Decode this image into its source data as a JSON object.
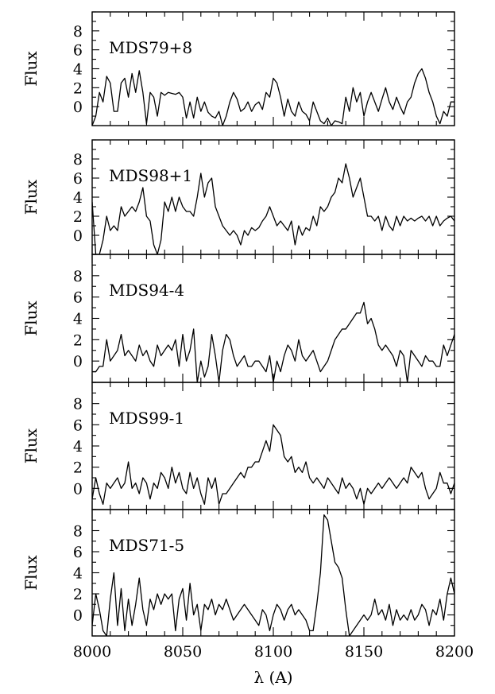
{
  "chart_data": {
    "type": "line",
    "xlabel": "λ (A)",
    "xlim": [
      8000,
      8200
    ],
    "x_ticks": [
      8000,
      8050,
      8100,
      8150,
      8200
    ],
    "x_tick_labels": [
      "8000",
      "8050",
      "8100",
      "8150",
      "8200"
    ],
    "ylim": [
      -2,
      10
    ],
    "y_ticks": [
      0,
      2,
      4,
      6,
      8
    ],
    "y_tick_labels": [
      "0",
      "2",
      "4",
      "6",
      "8"
    ],
    "ylabel": "Flux",
    "panels": [
      {
        "name": "MDS79+8",
        "x": [
          8000,
          8002,
          8004,
          8006,
          8008,
          8010,
          8012,
          8014,
          8016,
          8018,
          8020,
          8022,
          8024,
          8026,
          8028,
          8030,
          8032,
          8034,
          8036,
          8038,
          8040,
          8042,
          8044,
          8046,
          8048,
          8050,
          8052,
          8054,
          8056,
          8058,
          8060,
          8062,
          8064,
          8066,
          8068,
          8070,
          8072,
          8074,
          8076,
          8078,
          8080,
          8082,
          8084,
          8086,
          8088,
          8090,
          8092,
          8094,
          8096,
          8098,
          8100,
          8102,
          8104,
          8106,
          8108,
          8110,
          8112,
          8114,
          8116,
          8118,
          8120,
          8122,
          8124,
          8126,
          8128,
          8130,
          8132,
          8134,
          8136,
          8138,
          8140,
          8142,
          8144,
          8146,
          8148,
          8150,
          8152,
          8154,
          8156,
          8158,
          8160,
          8162,
          8164,
          8166,
          8168,
          8170,
          8172,
          8174,
          8176,
          8178,
          8180,
          8182,
          8184,
          8186,
          8188,
          8190,
          8192,
          8194,
          8196,
          8198,
          8200
        ],
        "values": [
          -2,
          -1,
          1.5,
          0.5,
          3.2,
          2.5,
          -0.5,
          -0.5,
          2.5,
          3.0,
          1.0,
          3.5,
          1.5,
          3.8,
          1.5,
          -1.8,
          1.5,
          1.0,
          -1.0,
          1.5,
          1.2,
          1.5,
          1.4,
          1.3,
          1.5,
          1.0,
          -1.2,
          0.5,
          -1.2,
          1.0,
          -0.5,
          0.5,
          -0.6,
          -1.0,
          -1.2,
          -0.5,
          -2.0,
          -1.0,
          0.5,
          1.5,
          0.8,
          -0.5,
          -0.2,
          0.5,
          -0.5,
          0.2,
          0.5,
          -0.3,
          1.5,
          1.0,
          3.0,
          2.5,
          1.0,
          -1.0,
          0.8,
          -0.5,
          -1.0,
          0.5,
          -0.5,
          -0.8,
          -1.5,
          0.5,
          -0.5,
          -1.5,
          -1.8,
          -1.2,
          -2.0,
          -1.5,
          -1.6,
          -1.8,
          1.0,
          -0.5,
          2.0,
          0.5,
          1.5,
          -1.0,
          0.5,
          1.5,
          0.5,
          -0.5,
          0.8,
          2.0,
          0.5,
          -0.3,
          1.0,
          0.0,
          -0.8,
          0.5,
          1.0,
          2.5,
          3.5,
          4.0,
          3.0,
          1.5,
          0.5,
          -1.0,
          -1.8,
          -0.5,
          -1.0,
          0.5,
          0.5
        ]
      },
      {
        "name": "MDS98+1",
        "x": [
          8000,
          8002,
          8004,
          8006,
          8008,
          8010,
          8012,
          8014,
          8016,
          8018,
          8020,
          8022,
          8024,
          8026,
          8028,
          8030,
          8032,
          8034,
          8036,
          8038,
          8040,
          8042,
          8044,
          8046,
          8048,
          8050,
          8052,
          8054,
          8056,
          8058,
          8060,
          8062,
          8064,
          8066,
          8068,
          8070,
          8072,
          8074,
          8076,
          8078,
          8080,
          8082,
          8084,
          8086,
          8088,
          8090,
          8092,
          8094,
          8096,
          8098,
          8100,
          8102,
          8104,
          8106,
          8108,
          8110,
          8112,
          8114,
          8116,
          8118,
          8120,
          8122,
          8124,
          8126,
          8128,
          8130,
          8132,
          8134,
          8136,
          8138,
          8140,
          8142,
          8144,
          8146,
          8148,
          8150,
          8152,
          8154,
          8156,
          8158,
          8160,
          8162,
          8164,
          8166,
          8168,
          8170,
          8172,
          8174,
          8176,
          8178,
          8180,
          8182,
          8184,
          8186,
          8188,
          8190,
          8192,
          8194,
          8196,
          8198,
          8200
        ],
        "values": [
          3.5,
          -2.0,
          -2.0,
          -0.5,
          2.0,
          0.5,
          1.0,
          0.5,
          3.0,
          2.0,
          2.5,
          3.0,
          2.5,
          3.5,
          5.0,
          2.0,
          1.5,
          -1.0,
          -2.0,
          -0.5,
          3.5,
          2.5,
          4.0,
          2.5,
          4.0,
          3.0,
          2.5,
          2.5,
          2.0,
          4.0,
          6.5,
          4.0,
          5.5,
          6.0,
          3.0,
          2.0,
          1.0,
          0.5,
          0.0,
          0.5,
          0.0,
          -1.0,
          0.5,
          0.0,
          0.8,
          0.5,
          0.8,
          1.5,
          2.0,
          3.0,
          2.0,
          1.0,
          1.5,
          1.0,
          0.5,
          1.5,
          -1.0,
          1.0,
          0.0,
          0.8,
          0.5,
          2.0,
          1.0,
          3.0,
          2.5,
          3.0,
          4.0,
          4.5,
          6.0,
          5.5,
          7.5,
          6.0,
          4.0,
          5.0,
          6.0,
          4.0,
          2.0,
          2.0,
          1.5,
          2.0,
          0.5,
          2.0,
          1.0,
          0.5,
          2.0,
          1.0,
          2.0,
          1.5,
          1.8,
          1.5,
          1.8,
          2.0,
          1.5,
          2.0,
          1.0,
          2.0,
          1.0,
          1.5,
          1.8,
          2.0,
          1.5
        ]
      },
      {
        "name": "MDS94-4",
        "x": [
          8000,
          8002,
          8004,
          8006,
          8008,
          8010,
          8012,
          8014,
          8016,
          8018,
          8020,
          8022,
          8024,
          8026,
          8028,
          8030,
          8032,
          8034,
          8036,
          8038,
          8040,
          8042,
          8044,
          8046,
          8048,
          8050,
          8052,
          8054,
          8056,
          8058,
          8060,
          8062,
          8064,
          8066,
          8068,
          8070,
          8072,
          8074,
          8076,
          8078,
          8080,
          8082,
          8084,
          8086,
          8088,
          8090,
          8092,
          8094,
          8096,
          8098,
          8100,
          8102,
          8104,
          8106,
          8108,
          8110,
          8112,
          8114,
          8116,
          8118,
          8120,
          8122,
          8124,
          8126,
          8128,
          8130,
          8132,
          8134,
          8136,
          8138,
          8140,
          8142,
          8144,
          8146,
          8148,
          8150,
          8152,
          8154,
          8156,
          8158,
          8160,
          8162,
          8164,
          8166,
          8168,
          8170,
          8172,
          8174,
          8176,
          8178,
          8180,
          8182,
          8184,
          8186,
          8188,
          8190,
          8192,
          8194,
          8196,
          8198,
          8200
        ],
        "values": [
          -1.0,
          -1.0,
          -0.5,
          -0.5,
          2.0,
          0.0,
          0.5,
          1.0,
          2.5,
          0.5,
          1.0,
          0.5,
          0.0,
          1.5,
          0.5,
          1.0,
          0.0,
          -0.5,
          1.5,
          0.5,
          1.0,
          1.5,
          1.0,
          2.0,
          -0.5,
          2.5,
          0.0,
          1.0,
          3.0,
          -2.0,
          0.0,
          -1.5,
          -0.5,
          2.5,
          0.5,
          -2.0,
          1.0,
          2.5,
          2.0,
          0.5,
          -0.5,
          0.0,
          0.5,
          -0.5,
          -0.5,
          0.0,
          0.0,
          -0.5,
          -1.0,
          0.5,
          -2.0,
          0.0,
          -1.0,
          0.5,
          1.5,
          1.0,
          0.0,
          2.0,
          0.5,
          0.0,
          0.5,
          1.0,
          0.0,
          -1.0,
          -0.5,
          0.0,
          1.0,
          2.0,
          2.5,
          3.0,
          3.0,
          3.5,
          4.0,
          4.5,
          4.5,
          5.5,
          3.5,
          4.0,
          3.0,
          1.5,
          1.0,
          1.5,
          1.0,
          0.5,
          -0.5,
          1.0,
          0.5,
          -2.0,
          1.0,
          0.5,
          0.0,
          -0.5,
          0.5,
          0.0,
          0.0,
          -0.5,
          -0.5,
          1.5,
          0.5,
          1.5,
          2.5
        ]
      },
      {
        "name": "MDS99-1",
        "x": [
          8000,
          8002,
          8004,
          8006,
          8008,
          8010,
          8012,
          8014,
          8016,
          8018,
          8020,
          8022,
          8024,
          8026,
          8028,
          8030,
          8032,
          8034,
          8036,
          8038,
          8040,
          8042,
          8044,
          8046,
          8048,
          8050,
          8052,
          8054,
          8056,
          8058,
          8060,
          8062,
          8064,
          8066,
          8068,
          8070,
          8072,
          8074,
          8076,
          8078,
          8080,
          8082,
          8084,
          8086,
          8088,
          8090,
          8092,
          8094,
          8096,
          8098,
          8100,
          8102,
          8104,
          8106,
          8108,
          8110,
          8112,
          8114,
          8116,
          8118,
          8120,
          8122,
          8124,
          8126,
          8128,
          8130,
          8132,
          8134,
          8136,
          8138,
          8140,
          8142,
          8144,
          8146,
          8148,
          8150,
          8152,
          8154,
          8156,
          8158,
          8160,
          8162,
          8164,
          8166,
          8168,
          8170,
          8172,
          8174,
          8176,
          8178,
          8180,
          8182,
          8184,
          8186,
          8188,
          8190,
          8192,
          8194,
          8196,
          8198,
          8200
        ],
        "values": [
          -1.0,
          1.0,
          -0.5,
          -1.5,
          0.5,
          0.0,
          0.5,
          1.0,
          0.0,
          0.5,
          2.5,
          0.0,
          0.5,
          -0.5,
          1.0,
          0.5,
          -1.0,
          0.5,
          0.0,
          1.5,
          1.0,
          0.0,
          2.0,
          0.5,
          1.5,
          0.0,
          -0.5,
          1.5,
          0.0,
          1.0,
          -0.5,
          -1.5,
          1.0,
          0.0,
          1.0,
          -1.5,
          -0.5,
          -0.5,
          0.0,
          0.5,
          1.0,
          1.5,
          1.0,
          2.0,
          2.0,
          2.5,
          2.5,
          3.5,
          4.5,
          3.5,
          6.0,
          5.5,
          5.0,
          3.0,
          2.5,
          3.0,
          1.5,
          2.0,
          1.5,
          2.5,
          1.0,
          0.5,
          1.0,
          0.5,
          0.0,
          1.0,
          0.5,
          0.0,
          -0.5,
          1.0,
          0.0,
          0.5,
          0.0,
          -1.0,
          0.0,
          -1.5,
          0.0,
          -0.5,
          0.0,
          0.5,
          0.0,
          0.5,
          1.0,
          0.5,
          0.0,
          0.5,
          1.0,
          0.5,
          2.0,
          1.5,
          1.0,
          1.5,
          0.0,
          -1.0,
          -0.5,
          0.0,
          1.5,
          0.5,
          0.5,
          -0.5,
          0.5
        ]
      },
      {
        "name": "MDS71-5",
        "x": [
          8000,
          8002,
          8004,
          8006,
          8008,
          8010,
          8012,
          8014,
          8016,
          8018,
          8020,
          8022,
          8024,
          8026,
          8028,
          8030,
          8032,
          8034,
          8036,
          8038,
          8040,
          8042,
          8044,
          8046,
          8048,
          8050,
          8052,
          8054,
          8056,
          8058,
          8060,
          8062,
          8064,
          8066,
          8068,
          8070,
          8072,
          8074,
          8076,
          8078,
          8080,
          8082,
          8084,
          8086,
          8088,
          8090,
          8092,
          8094,
          8096,
          8098,
          8100,
          8102,
          8104,
          8106,
          8108,
          8110,
          8112,
          8114,
          8116,
          8118,
          8120,
          8122,
          8124,
          8126,
          8128,
          8130,
          8132,
          8134,
          8136,
          8138,
          8140,
          8142,
          8144,
          8146,
          8148,
          8150,
          8152,
          8154,
          8156,
          8158,
          8160,
          8162,
          8164,
          8166,
          8168,
          8170,
          8172,
          8174,
          8176,
          8178,
          8180,
          8182,
          8184,
          8186,
          8188,
          8190,
          8192,
          8194,
          8196,
          8198,
          8200
        ],
        "values": [
          -1.0,
          2.0,
          0.5,
          -1.5,
          -2.0,
          1.5,
          4.0,
          -1.0,
          2.5,
          -1.5,
          1.5,
          -1.0,
          1.0,
          3.5,
          0.5,
          -1.0,
          1.5,
          0.5,
          2.0,
          1.0,
          2.0,
          1.5,
          2.0,
          -1.5,
          1.5,
          2.5,
          -0.5,
          3.0,
          0.0,
          1.0,
          -1.5,
          1.0,
          0.5,
          1.5,
          0.0,
          1.0,
          0.5,
          1.5,
          0.5,
          -0.5,
          0.0,
          0.5,
          1.0,
          0.5,
          0.0,
          -0.5,
          -1.0,
          0.5,
          0.0,
          -1.5,
          0.0,
          1.0,
          0.5,
          -0.5,
          0.5,
          1.0,
          0.0,
          0.5,
          0.0,
          -0.5,
          -1.5,
          -1.5,
          1.0,
          4.0,
          9.5,
          9.0,
          7.0,
          5.0,
          4.5,
          3.5,
          0.5,
          -2.0,
          -1.5,
          -1.0,
          -0.5,
          0.0,
          -0.5,
          0.0,
          1.5,
          0.0,
          0.5,
          -0.5,
          1.0,
          -1.0,
          0.5,
          -0.5,
          0.0,
          -0.5,
          0.5,
          -0.5,
          0.0,
          1.0,
          0.5,
          -1.0,
          0.5,
          0.0,
          1.5,
          -0.5,
          2.0,
          3.5,
          2.0
        ]
      }
    ]
  }
}
